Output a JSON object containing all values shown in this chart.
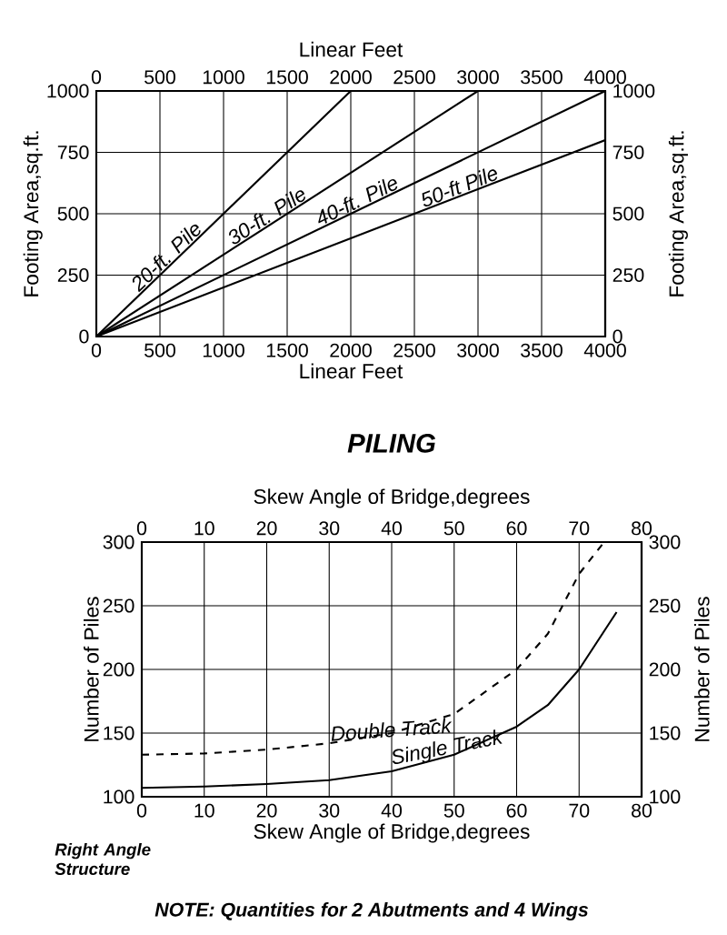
{
  "chart_data": [
    {
      "type": "line",
      "xlabel": "Linear Feet",
      "x2label": "Linear Feet",
      "ylabel": "Footing Area,sq.ft.",
      "y2label": "Footing Area,sq.ft.",
      "xlim": [
        0,
        4000
      ],
      "xticks": [
        0,
        500,
        1000,
        1500,
        2000,
        2500,
        3000,
        3500,
        4000
      ],
      "x2lim": [
        0,
        4000
      ],
      "x2ticks": [
        0,
        500,
        1000,
        1500,
        2000,
        2500,
        3000,
        3500,
        4000
      ],
      "ylim": [
        0,
        1000
      ],
      "yticks": [
        0,
        250,
        500,
        750,
        1000
      ],
      "y2lim": [
        0,
        1000
      ],
      "y2ticks": [
        0,
        250,
        500,
        750,
        1000
      ],
      "grid": true,
      "line_style": "solid",
      "series": [
        {
          "name": "20-ft. Pile",
          "color": "#000000",
          "x": [
            0,
            2000
          ],
          "values": [
            0,
            1000
          ]
        },
        {
          "name": "30-ft. Pile",
          "color": "#000000",
          "x": [
            0,
            3000
          ],
          "values": [
            0,
            1000
          ]
        },
        {
          "name": "40-ft. Pile",
          "color": "#000000",
          "x": [
            0,
            4000
          ],
          "values": [
            0,
            1000
          ]
        },
        {
          "name": "50-ft Pile",
          "color": "#000000",
          "x": [
            0,
            4000
          ],
          "values": [
            0,
            800
          ]
        }
      ]
    },
    {
      "type": "line",
      "title": "PILING",
      "xlabel": "Skew Angle of Bridge,degrees",
      "x2label": "Skew Angle of Bridge,degrees",
      "ylabel": "Number of Piles",
      "y2label": "Number of Piles",
      "xlim": [
        0,
        80
      ],
      "xticks": [
        0,
        10,
        20,
        30,
        40,
        50,
        60,
        70,
        80
      ],
      "x2lim": [
        0,
        80
      ],
      "x2ticks": [
        0,
        10,
        20,
        30,
        40,
        50,
        60,
        70,
        80
      ],
      "ylim": [
        100,
        300
      ],
      "yticks": [
        100,
        150,
        200,
        250,
        300
      ],
      "y2lim": [
        100,
        300
      ],
      "y2ticks": [
        100,
        150,
        200,
        250,
        300
      ],
      "grid": true,
      "annotations": [
        "Right Angle Structure",
        "NOTE: Quantities for 2 Abutments and 4 Wings"
      ],
      "series": [
        {
          "name": "Double Track",
          "color": "#000000",
          "line_style": "dashed",
          "x": [
            0,
            10,
            20,
            30,
            40,
            50,
            60,
            65,
            70,
            74
          ],
          "values": [
            133,
            134,
            137,
            142,
            150,
            165,
            200,
            228,
            275,
            300
          ]
        },
        {
          "name": "Single Track",
          "color": "#000000",
          "line_style": "solid",
          "x": [
            0,
            10,
            20,
            30,
            40,
            50,
            60,
            65,
            70,
            74,
            76
          ],
          "values": [
            107,
            108,
            110,
            113,
            120,
            133,
            155,
            172,
            200,
            230,
            245
          ]
        }
      ]
    }
  ]
}
